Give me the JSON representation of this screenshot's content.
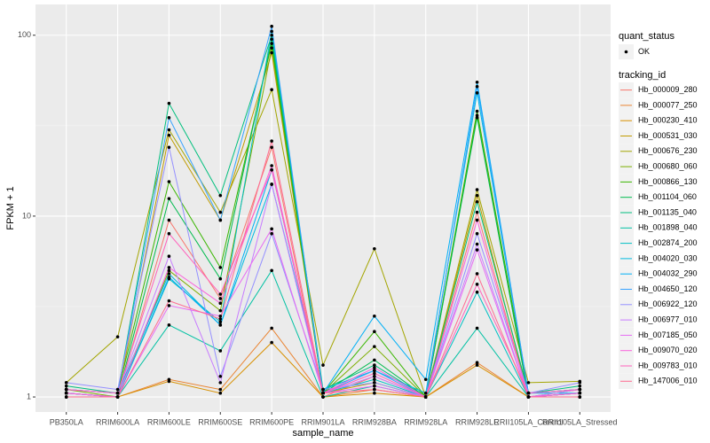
{
  "chart_data": {
    "type": "line",
    "x_label": "sample_name",
    "y_label": "FPKM + 1",
    "categories": [
      "PB350LA",
      "RRIM600LA",
      "RRIM600LE",
      "RRIM600SE",
      "RRIM600PE",
      "RRIM901LA",
      "RRIM928BA",
      "RRIM928LA",
      "RRIM928LE",
      "RRII105LA_Control",
      "RRII105LA_Stressed"
    ],
    "log_y": true,
    "grid": true,
    "ylim": [
      0.826,
      148
    ],
    "yticks": [
      1,
      10,
      100
    ],
    "point_legend_title": "quant_status",
    "point_legend_label": "OK",
    "point_color": "#000000",
    "legend_title": "tracking_id",
    "legend_position": "right",
    "series": [
      {
        "name": "Hb_000009_280",
        "color": "#F8766D",
        "values": [
          1.05,
          1,
          9.5,
          3.5,
          24,
          1,
          1.3,
          1,
          10.5,
          1,
          1.05
        ]
      },
      {
        "name": "Hb_000077_250",
        "color": "#EA8331",
        "values": [
          1,
          1,
          1.25,
          1.1,
          2.4,
          1,
          1.1,
          1,
          1.55,
          1,
          1
        ]
      },
      {
        "name": "Hb_000230_410",
        "color": "#D89000",
        "values": [
          1,
          1,
          1.22,
          1.05,
          2.0,
          1,
          1.05,
          1,
          1.5,
          1,
          1
        ]
      },
      {
        "name": "Hb_000531_030",
        "color": "#C09B00",
        "values": [
          1.05,
          1,
          28,
          9.5,
          80,
          1.05,
          1.2,
          1,
          13,
          1,
          1.05
        ]
      },
      {
        "name": "Hb_000676_230",
        "color": "#A3A500",
        "values": [
          1.2,
          2.15,
          30,
          10.5,
          50,
          1.5,
          6.6,
          1,
          14,
          1.2,
          1.22
        ]
      },
      {
        "name": "Hb_000680_060",
        "color": "#7CAE00",
        "values": [
          1.1,
          1,
          5,
          3,
          85,
          1.05,
          1.9,
          1,
          36,
          1,
          1.1
        ]
      },
      {
        "name": "Hb_000866_130",
        "color": "#39B600",
        "values": [
          1.1,
          1.05,
          15.5,
          5.2,
          90,
          1.05,
          2.3,
          1,
          38,
          1.05,
          1.1
        ]
      },
      {
        "name": "Hb_001104_060",
        "color": "#00BB4E",
        "values": [
          1.05,
          1,
          12.5,
          4.5,
          95,
          1.05,
          1.6,
          1,
          35,
          1,
          1.05
        ]
      },
      {
        "name": "Hb_001135_040",
        "color": "#00BF7D",
        "values": [
          1.15,
          1.05,
          42,
          13,
          100,
          1.1,
          1.5,
          1,
          12,
          1.05,
          1.15
        ]
      },
      {
        "name": "Hb_001898_040",
        "color": "#00C1A3",
        "values": [
          1,
          1,
          2.5,
          1.8,
          5,
          1,
          1.15,
          1,
          2.4,
          1,
          1
        ]
      },
      {
        "name": "Hb_002874_200",
        "color": "#00BFC4",
        "values": [
          1.05,
          1,
          4.5,
          2.6,
          105,
          1.05,
          1.25,
          1,
          3.8,
          1,
          1.05
        ]
      },
      {
        "name": "Hb_004020_030",
        "color": "#00BAE0",
        "values": [
          1.1,
          1.05,
          4.8,
          2.5,
          15,
          1.1,
          1.4,
          1.05,
          48,
          1.05,
          1.1
        ]
      },
      {
        "name": "Hb_004032_290",
        "color": "#00B0F6",
        "values": [
          1.05,
          1,
          4.6,
          2.5,
          18,
          1.05,
          2.8,
          1.25,
          55,
          1.05,
          1.05
        ]
      },
      {
        "name": "Hb_004650_120",
        "color": "#35A2FF",
        "values": [
          1.1,
          1.05,
          35,
          9.5,
          112,
          1.05,
          1.4,
          1,
          52,
          1.05,
          1.1
        ]
      },
      {
        "name": "Hb_006922_120",
        "color": "#9590FF",
        "values": [
          1.2,
          1.1,
          24,
          1.3,
          8,
          1.1,
          1.2,
          1,
          8,
          1.05,
          1.2
        ]
      },
      {
        "name": "Hb_006977_010",
        "color": "#C77CFF",
        "values": [
          1.1,
          1.05,
          6,
          1.2,
          15,
          1.05,
          1.3,
          1,
          7,
          1,
          1.1
        ]
      },
      {
        "name": "Hb_007185_050",
        "color": "#E76BF3",
        "values": [
          1.05,
          1,
          3.2,
          2.8,
          8.5,
          1.05,
          1.15,
          1,
          6.5,
          1,
          1.05
        ]
      },
      {
        "name": "Hb_009070_020",
        "color": "#FA62DB",
        "values": [
          1.05,
          1,
          5.2,
          3.3,
          19,
          1.05,
          1.45,
          1,
          9.5,
          1,
          1.05
        ]
      },
      {
        "name": "Hb_009783_010",
        "color": "#FF62BC",
        "values": [
          1.1,
          1.05,
          8,
          3.7,
          18,
          1.05,
          1.35,
          1,
          4.2,
          1.05,
          1.1
        ]
      },
      {
        "name": "Hb_147006_010",
        "color": "#FF6C91",
        "values": [
          1,
          1,
          3.4,
          2.7,
          26,
          1.05,
          1.1,
          1,
          4.8,
          1,
          1
        ]
      }
    ]
  }
}
